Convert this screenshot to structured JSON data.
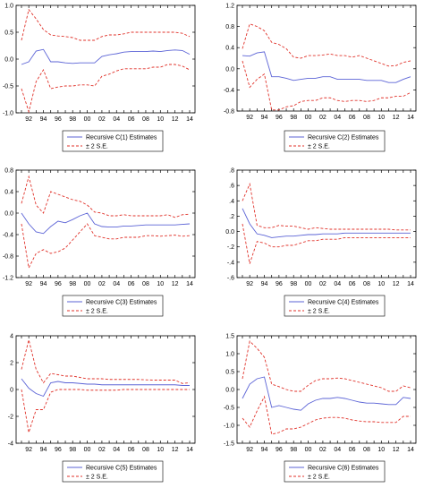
{
  "colors": {
    "estimate": "#5b63d6",
    "band": "#e0322a",
    "frame": "#000000",
    "legend_frame": "#000000"
  },
  "chart_data": [
    {
      "type": "line",
      "x": [
        "91",
        "92",
        "93",
        "94",
        "95",
        "96",
        "97",
        "98",
        "99",
        "00",
        "01",
        "02",
        "03",
        "04",
        "05",
        "06",
        "07",
        "08",
        "09",
        "10",
        "11",
        "12",
        "13",
        "14"
      ],
      "xticks": [
        "92",
        "94",
        "96",
        "98",
        "00",
        "02",
        "04",
        "06",
        "08",
        "10",
        "12",
        "14"
      ],
      "ylim": [
        -1.0,
        1.0
      ],
      "yticks": [
        "-1.0",
        "-0.5",
        "0.0",
        "0.5",
        "1.0"
      ],
      "ytick_values": [
        -1.0,
        -0.5,
        0.0,
        0.5,
        1.0
      ],
      "series": [
        {
          "name": "Recursive C(1) Estimates",
          "style": "solid",
          "values": [
            -0.1,
            -0.05,
            0.15,
            0.18,
            -0.05,
            -0.05,
            -0.07,
            -0.08,
            -0.07,
            -0.07,
            -0.07,
            0.05,
            0.08,
            0.1,
            0.13,
            0.14,
            0.14,
            0.14,
            0.15,
            0.14,
            0.16,
            0.17,
            0.16,
            0.09
          ]
        },
        {
          "name": "± 2 S.E.",
          "style": "dashed",
          "values": [
            0.35,
            0.92,
            0.75,
            0.55,
            0.45,
            0.43,
            0.42,
            0.4,
            0.35,
            0.35,
            0.35,
            0.42,
            0.45,
            0.45,
            0.47,
            0.5,
            0.5,
            0.5,
            0.5,
            0.5,
            0.5,
            0.5,
            0.48,
            0.42
          ]
        },
        {
          "name": "± 2 S.E. lower",
          "style": "dashed",
          "values": [
            -0.55,
            -0.98,
            -0.42,
            -0.2,
            -0.55,
            -0.52,
            -0.5,
            -0.5,
            -0.48,
            -0.48,
            -0.5,
            -0.32,
            -0.28,
            -0.22,
            -0.18,
            -0.18,
            -0.18,
            -0.18,
            -0.15,
            -0.15,
            -0.1,
            -0.1,
            -0.13,
            -0.2
          ]
        }
      ],
      "legend": [
        "Recursive C(1) Estimates",
        "± 2 S.E."
      ]
    },
    {
      "type": "line",
      "x": [
        "91",
        "92",
        "93",
        "94",
        "95",
        "96",
        "97",
        "98",
        "99",
        "00",
        "01",
        "02",
        "03",
        "04",
        "05",
        "06",
        "07",
        "08",
        "09",
        "10",
        "11",
        "12",
        "13",
        "14"
      ],
      "xticks": [
        "92",
        "94",
        "96",
        "98",
        "00",
        "02",
        "04",
        "06",
        "08",
        "10",
        "12",
        "14"
      ],
      "ylim": [
        -0.8,
        1.2
      ],
      "yticks": [
        "-0.8",
        "-0.4",
        "0.0",
        "0.4",
        "0.8",
        "1.2"
      ],
      "ytick_values": [
        -0.8,
        -0.4,
        0.0,
        0.4,
        0.8,
        1.2
      ],
      "series": [
        {
          "name": "Recursive C(2) Estimates",
          "style": "solid",
          "values": [
            0.25,
            0.24,
            0.3,
            0.32,
            -0.15,
            -0.15,
            -0.18,
            -0.22,
            -0.2,
            -0.18,
            -0.18,
            -0.15,
            -0.15,
            -0.2,
            -0.2,
            -0.2,
            -0.2,
            -0.22,
            -0.22,
            -0.22,
            -0.26,
            -0.26,
            -0.2,
            -0.15
          ]
        },
        {
          "name": "± 2 S.E.",
          "style": "dashed",
          "values": [
            0.38,
            0.85,
            0.8,
            0.72,
            0.5,
            0.46,
            0.38,
            0.22,
            0.2,
            0.25,
            0.25,
            0.26,
            0.28,
            0.25,
            0.25,
            0.22,
            0.25,
            0.2,
            0.15,
            0.1,
            0.05,
            0.06,
            0.12,
            0.15
          ]
        },
        {
          "name": "± 2 S.E. lower",
          "style": "dashed",
          "values": [
            0.15,
            -0.35,
            -0.2,
            -0.1,
            -0.78,
            -0.78,
            -0.72,
            -0.7,
            -0.62,
            -0.6,
            -0.6,
            -0.55,
            -0.55,
            -0.6,
            -0.62,
            -0.6,
            -0.6,
            -0.62,
            -0.6,
            -0.55,
            -0.55,
            -0.52,
            -0.52,
            -0.45
          ]
        }
      ],
      "legend": [
        "Recursive C(2) Estimates",
        "± 2 S.E."
      ]
    },
    {
      "type": "line",
      "x": [
        "91",
        "92",
        "93",
        "94",
        "95",
        "96",
        "97",
        "98",
        "99",
        "00",
        "01",
        "02",
        "03",
        "04",
        "05",
        "06",
        "07",
        "08",
        "09",
        "10",
        "11",
        "12",
        "13",
        "14"
      ],
      "xticks": [
        "92",
        "94",
        "96",
        "98",
        "00",
        "02",
        "04",
        "06",
        "08",
        "10",
        "12",
        "14"
      ],
      "ylim": [
        -1.2,
        0.8
      ],
      "yticks": [
        "-1.2",
        "-0.8",
        "-0.4",
        "0.0",
        "0.4",
        "0.8"
      ],
      "ytick_values": [
        -1.2,
        -0.8,
        -0.4,
        0.0,
        0.4,
        0.8
      ],
      "series": [
        {
          "name": "Recursive C(3) Estimates",
          "style": "solid",
          "values": [
            0.0,
            -0.2,
            -0.35,
            -0.38,
            -0.25,
            -0.15,
            -0.18,
            -0.12,
            -0.05,
            0.0,
            -0.2,
            -0.25,
            -0.26,
            -0.26,
            -0.24,
            -0.24,
            -0.23,
            -0.22,
            -0.22,
            -0.22,
            -0.22,
            -0.22,
            -0.21,
            -0.2
          ]
        },
        {
          "name": "± 2 S.E.",
          "style": "dashed",
          "values": [
            0.18,
            0.68,
            0.15,
            0.0,
            0.4,
            0.35,
            0.3,
            0.25,
            0.22,
            0.15,
            0.02,
            0.0,
            -0.05,
            -0.05,
            -0.03,
            -0.05,
            -0.05,
            -0.05,
            -0.05,
            -0.05,
            -0.03,
            -0.08,
            -0.03,
            -0.02
          ]
        },
        {
          "name": "± 2 S.E. lower",
          "style": "dashed",
          "values": [
            -0.2,
            -1.02,
            -0.75,
            -0.68,
            -0.75,
            -0.72,
            -0.65,
            -0.5,
            -0.35,
            -0.2,
            -0.42,
            -0.45,
            -0.48,
            -0.48,
            -0.45,
            -0.45,
            -0.45,
            -0.42,
            -0.42,
            -0.43,
            -0.42,
            -0.41,
            -0.43,
            -0.42
          ]
        }
      ],
      "legend": [
        "Recursive C(3) Estimates",
        "± 2 S.E."
      ]
    },
    {
      "type": "line",
      "x": [
        "91",
        "92",
        "93",
        "94",
        "95",
        "96",
        "97",
        "98",
        "99",
        "00",
        "01",
        "02",
        "03",
        "04",
        "05",
        "06",
        "07",
        "08",
        "09",
        "10",
        "11",
        "12",
        "13",
        "14"
      ],
      "xticks": [
        "92",
        "94",
        "96",
        "98",
        "00",
        "02",
        "04",
        "06",
        "08",
        "10",
        "12",
        "14"
      ],
      "ylim": [
        -0.6,
        0.8
      ],
      "yticks": [
        "-.6",
        "-.4",
        "-.2",
        "0.0",
        ".2",
        ".4",
        ".6",
        ".8"
      ],
      "ytick_values": [
        -0.6,
        -0.4,
        -0.2,
        0.0,
        0.2,
        0.4,
        0.6,
        0.8
      ],
      "series": [
        {
          "name": "Recursive C(4) Estimates",
          "style": "solid",
          "values": [
            0.3,
            0.1,
            -0.03,
            -0.05,
            -0.08,
            -0.07,
            -0.06,
            -0.06,
            -0.05,
            -0.04,
            -0.04,
            -0.03,
            -0.03,
            -0.03,
            -0.02,
            -0.02,
            -0.02,
            -0.02,
            -0.02,
            -0.02,
            -0.02,
            -0.02,
            -0.02,
            -0.02
          ]
        },
        {
          "name": "± 2 S.E.",
          "style": "dashed",
          "values": [
            0.4,
            0.62,
            0.08,
            0.05,
            0.05,
            0.08,
            0.07,
            0.07,
            0.05,
            0.03,
            0.05,
            0.04,
            0.03,
            0.03,
            0.03,
            0.03,
            0.03,
            0.03,
            0.03,
            0.03,
            0.03,
            0.02,
            0.02,
            0.02
          ]
        },
        {
          "name": "± 2 S.E. lower",
          "style": "dashed",
          "values": [
            0.1,
            -0.42,
            -0.13,
            -0.15,
            -0.2,
            -0.2,
            -0.18,
            -0.18,
            -0.15,
            -0.12,
            -0.12,
            -0.1,
            -0.1,
            -0.1,
            -0.08,
            -0.08,
            -0.08,
            -0.08,
            -0.08,
            -0.08,
            -0.08,
            -0.08,
            -0.08,
            -0.08
          ]
        }
      ],
      "legend": [
        "Recursive C(4) Estimates",
        "± 2 S.E."
      ]
    },
    {
      "type": "line",
      "x": [
        "91",
        "92",
        "93",
        "94",
        "95",
        "96",
        "97",
        "98",
        "99",
        "00",
        "01",
        "02",
        "03",
        "04",
        "05",
        "06",
        "07",
        "08",
        "09",
        "10",
        "11",
        "12",
        "13",
        "14"
      ],
      "xticks": [
        "92",
        "94",
        "96",
        "98",
        "00",
        "02",
        "04",
        "06",
        "08",
        "10",
        "12",
        "14"
      ],
      "ylim": [
        -4,
        4
      ],
      "yticks": [
        "-4",
        "-2",
        "0",
        "2",
        "4"
      ],
      "ytick_values": [
        -4,
        -2,
        0,
        2,
        4
      ],
      "series": [
        {
          "name": "Recursive C(5) Estimates",
          "style": "solid",
          "values": [
            0.8,
            0.1,
            -0.3,
            -0.5,
            0.5,
            0.6,
            0.5,
            0.5,
            0.45,
            0.4,
            0.4,
            0.35,
            0.35,
            0.35,
            0.35,
            0.35,
            0.35,
            0.35,
            0.35,
            0.35,
            0.35,
            0.35,
            0.3,
            0.3
          ]
        },
        {
          "name": "± 2 S.E.",
          "style": "dashed",
          "values": [
            1.5,
            3.7,
            1.5,
            0.5,
            1.2,
            1.1,
            1.0,
            1.0,
            0.9,
            0.8,
            0.8,
            0.8,
            0.75,
            0.75,
            0.75,
            0.75,
            0.75,
            0.72,
            0.7,
            0.7,
            0.7,
            0.7,
            0.45,
            0.5
          ]
        },
        {
          "name": "± 2 S.E. lower",
          "style": "dashed",
          "values": [
            0.0,
            -3.2,
            -1.5,
            -1.5,
            -0.2,
            0.0,
            0.0,
            0.0,
            0.0,
            -0.05,
            -0.05,
            -0.05,
            -0.05,
            -0.05,
            0.0,
            0.0,
            0.0,
            0.0,
            0.0,
            0.0,
            0.0,
            0.0,
            0.0,
            0.0
          ]
        }
      ],
      "legend": [
        "Recursive C(5) Estimates",
        "± 2 S.E."
      ]
    },
    {
      "type": "line",
      "x": [
        "91",
        "92",
        "93",
        "94",
        "95",
        "96",
        "97",
        "98",
        "99",
        "00",
        "01",
        "02",
        "03",
        "04",
        "05",
        "06",
        "07",
        "08",
        "09",
        "10",
        "11",
        "12",
        "13",
        "14"
      ],
      "xticks": [
        "92",
        "94",
        "96",
        "98",
        "00",
        "02",
        "04",
        "06",
        "08",
        "10",
        "12",
        "14"
      ],
      "ylim": [
        -1.5,
        1.5
      ],
      "yticks": [
        "-1.5",
        "-1.0",
        "-0.5",
        "0.0",
        "0.5",
        "1.0",
        "1.5"
      ],
      "ytick_values": [
        -1.5,
        -1.0,
        -0.5,
        0.0,
        0.5,
        1.0,
        1.5
      ],
      "series": [
        {
          "name": "Recursive C(6) Estimates",
          "style": "solid",
          "values": [
            -0.25,
            0.15,
            0.3,
            0.35,
            -0.5,
            -0.45,
            -0.5,
            -0.55,
            -0.58,
            -0.4,
            -0.3,
            -0.25,
            -0.25,
            -0.22,
            -0.25,
            -0.3,
            -0.35,
            -0.38,
            -0.38,
            -0.4,
            -0.42,
            -0.42,
            -0.22,
            -0.25
          ]
        },
        {
          "name": "± 2 S.E.",
          "style": "dashed",
          "values": [
            0.3,
            1.35,
            1.15,
            0.9,
            0.15,
            0.08,
            0.0,
            -0.05,
            -0.05,
            0.12,
            0.25,
            0.3,
            0.3,
            0.32,
            0.3,
            0.25,
            0.2,
            0.15,
            0.1,
            0.05,
            -0.05,
            -0.05,
            0.1,
            0.05
          ]
        },
        {
          "name": "± 2 S.E. lower",
          "style": "dashed",
          "values": [
            -0.8,
            -1.05,
            -0.6,
            -0.2,
            -1.25,
            -1.2,
            -1.1,
            -1.1,
            -1.05,
            -0.95,
            -0.85,
            -0.8,
            -0.78,
            -0.78,
            -0.8,
            -0.85,
            -0.88,
            -0.9,
            -0.9,
            -0.92,
            -0.92,
            -0.92,
            -0.75,
            -0.75
          ]
        }
      ],
      "legend": [
        "Recursive C(6) Estimates",
        "± 2 S.E."
      ]
    }
  ]
}
